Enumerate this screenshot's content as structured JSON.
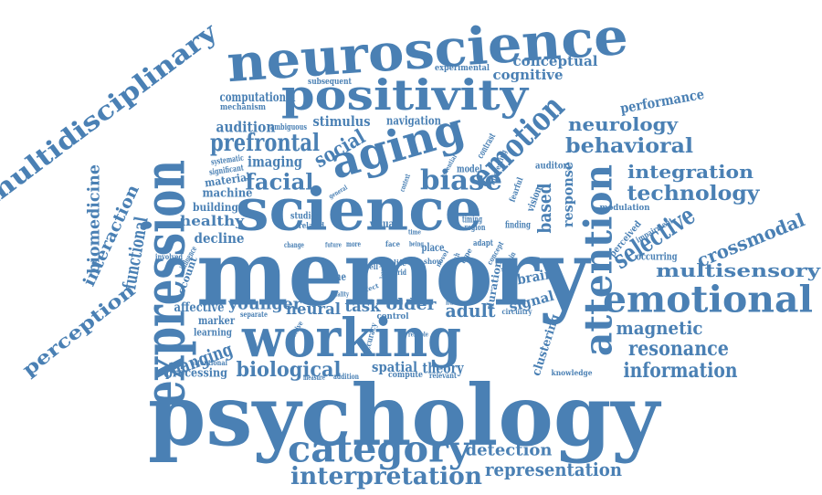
{
  "colors": {
    "word": "#4a80b4",
    "background": "#ffffff"
  },
  "words": [
    {
      "text": "psychology"
    },
    {
      "text": "memory"
    },
    {
      "text": "science"
    },
    {
      "text": "working"
    },
    {
      "text": "expression"
    },
    {
      "text": "neuroscience"
    },
    {
      "text": "positivity"
    },
    {
      "text": "aging"
    },
    {
      "text": "attention"
    },
    {
      "text": "category"
    },
    {
      "text": "emotional"
    },
    {
      "text": "multidisciplinary"
    },
    {
      "text": "interpretation"
    },
    {
      "text": "emotion"
    },
    {
      "text": "biase"
    },
    {
      "text": "prefrontal"
    },
    {
      "text": "facial"
    },
    {
      "text": "selective"
    },
    {
      "text": "functional"
    },
    {
      "text": "biomedicine"
    },
    {
      "text": "interaction"
    },
    {
      "text": "perception"
    },
    {
      "text": "multisensory"
    },
    {
      "text": "representation"
    },
    {
      "text": "information"
    },
    {
      "text": "resonance"
    },
    {
      "text": "magnetic"
    },
    {
      "text": "behavioral"
    },
    {
      "text": "technology"
    },
    {
      "text": "integration"
    },
    {
      "text": "crossmodal"
    },
    {
      "text": "neurology"
    },
    {
      "text": "biological"
    },
    {
      "text": "detection"
    },
    {
      "text": "social"
    },
    {
      "text": "based"
    },
    {
      "text": "performance"
    },
    {
      "text": "conceptual"
    },
    {
      "text": "cognitive"
    },
    {
      "text": "audition"
    },
    {
      "text": "stimulus"
    },
    {
      "text": "navigation"
    },
    {
      "text": "computational"
    },
    {
      "text": "imaging"
    },
    {
      "text": "changing"
    },
    {
      "text": "younger"
    },
    {
      "text": "adult"
    },
    {
      "text": "theory"
    },
    {
      "text": "spatial"
    },
    {
      "text": "response"
    },
    {
      "text": "neural"
    },
    {
      "text": "task"
    },
    {
      "text": "older"
    },
    {
      "text": "healthy"
    },
    {
      "text": "decline"
    },
    {
      "text": "affective"
    },
    {
      "text": "processing"
    },
    {
      "text": "signal"
    },
    {
      "text": "brain"
    },
    {
      "text": "clustering"
    },
    {
      "text": "building"
    },
    {
      "text": "machine"
    },
    {
      "text": "material"
    },
    {
      "text": "significant"
    },
    {
      "text": "systematic"
    },
    {
      "text": "ambiguous"
    },
    {
      "text": "mechanism"
    },
    {
      "text": "subsequent"
    },
    {
      "text": "experimental"
    },
    {
      "text": "studies"
    },
    {
      "text": "related"
    },
    {
      "text": "visual"
    },
    {
      "text": "timing"
    },
    {
      "text": "region"
    },
    {
      "text": "finding"
    },
    {
      "text": "model"
    },
    {
      "text": "auditory"
    },
    {
      "text": "vision"
    },
    {
      "text": "fearful"
    },
    {
      "text": "modulation"
    },
    {
      "text": "perceived"
    },
    {
      "text": "impairment"
    },
    {
      "text": "occurring"
    },
    {
      "text": "knowledge"
    },
    {
      "text": "duration"
    },
    {
      "text": "time"
    },
    {
      "text": "life"
    },
    {
      "text": "grid"
    },
    {
      "text": "level"
    },
    {
      "text": "cell"
    },
    {
      "text": "place"
    },
    {
      "text": "show"
    },
    {
      "text": "research"
    },
    {
      "text": "control"
    },
    {
      "text": "reliable"
    },
    {
      "text": "accuracy"
    },
    {
      "text": "sensitive"
    },
    {
      "text": "compute"
    },
    {
      "text": "relevant"
    },
    {
      "text": "addition"
    },
    {
      "text": "measure"
    },
    {
      "text": "attentional"
    },
    {
      "text": "marker"
    },
    {
      "text": "learning"
    },
    {
      "text": "separate"
    },
    {
      "text": "account"
    },
    {
      "text": "influence"
    },
    {
      "text": "involved"
    },
    {
      "text": "change"
    },
    {
      "text": "more"
    },
    {
      "text": "face"
    },
    {
      "text": "being"
    },
    {
      "text": "future"
    },
    {
      "text": "adapt"
    },
    {
      "text": "interesting"
    },
    {
      "text": "essential"
    },
    {
      "text": "contrast"
    },
    {
      "text": "context"
    },
    {
      "text": "general"
    },
    {
      "text": "human"
    },
    {
      "text": "circuitry"
    },
    {
      "text": "concept"
    },
    {
      "text": "domain"
    },
    {
      "text": "type"
    },
    {
      "text": "effect"
    },
    {
      "text": "quality"
    },
    {
      "text": "time"
    },
    {
      "text": "novel"
    }
  ]
}
